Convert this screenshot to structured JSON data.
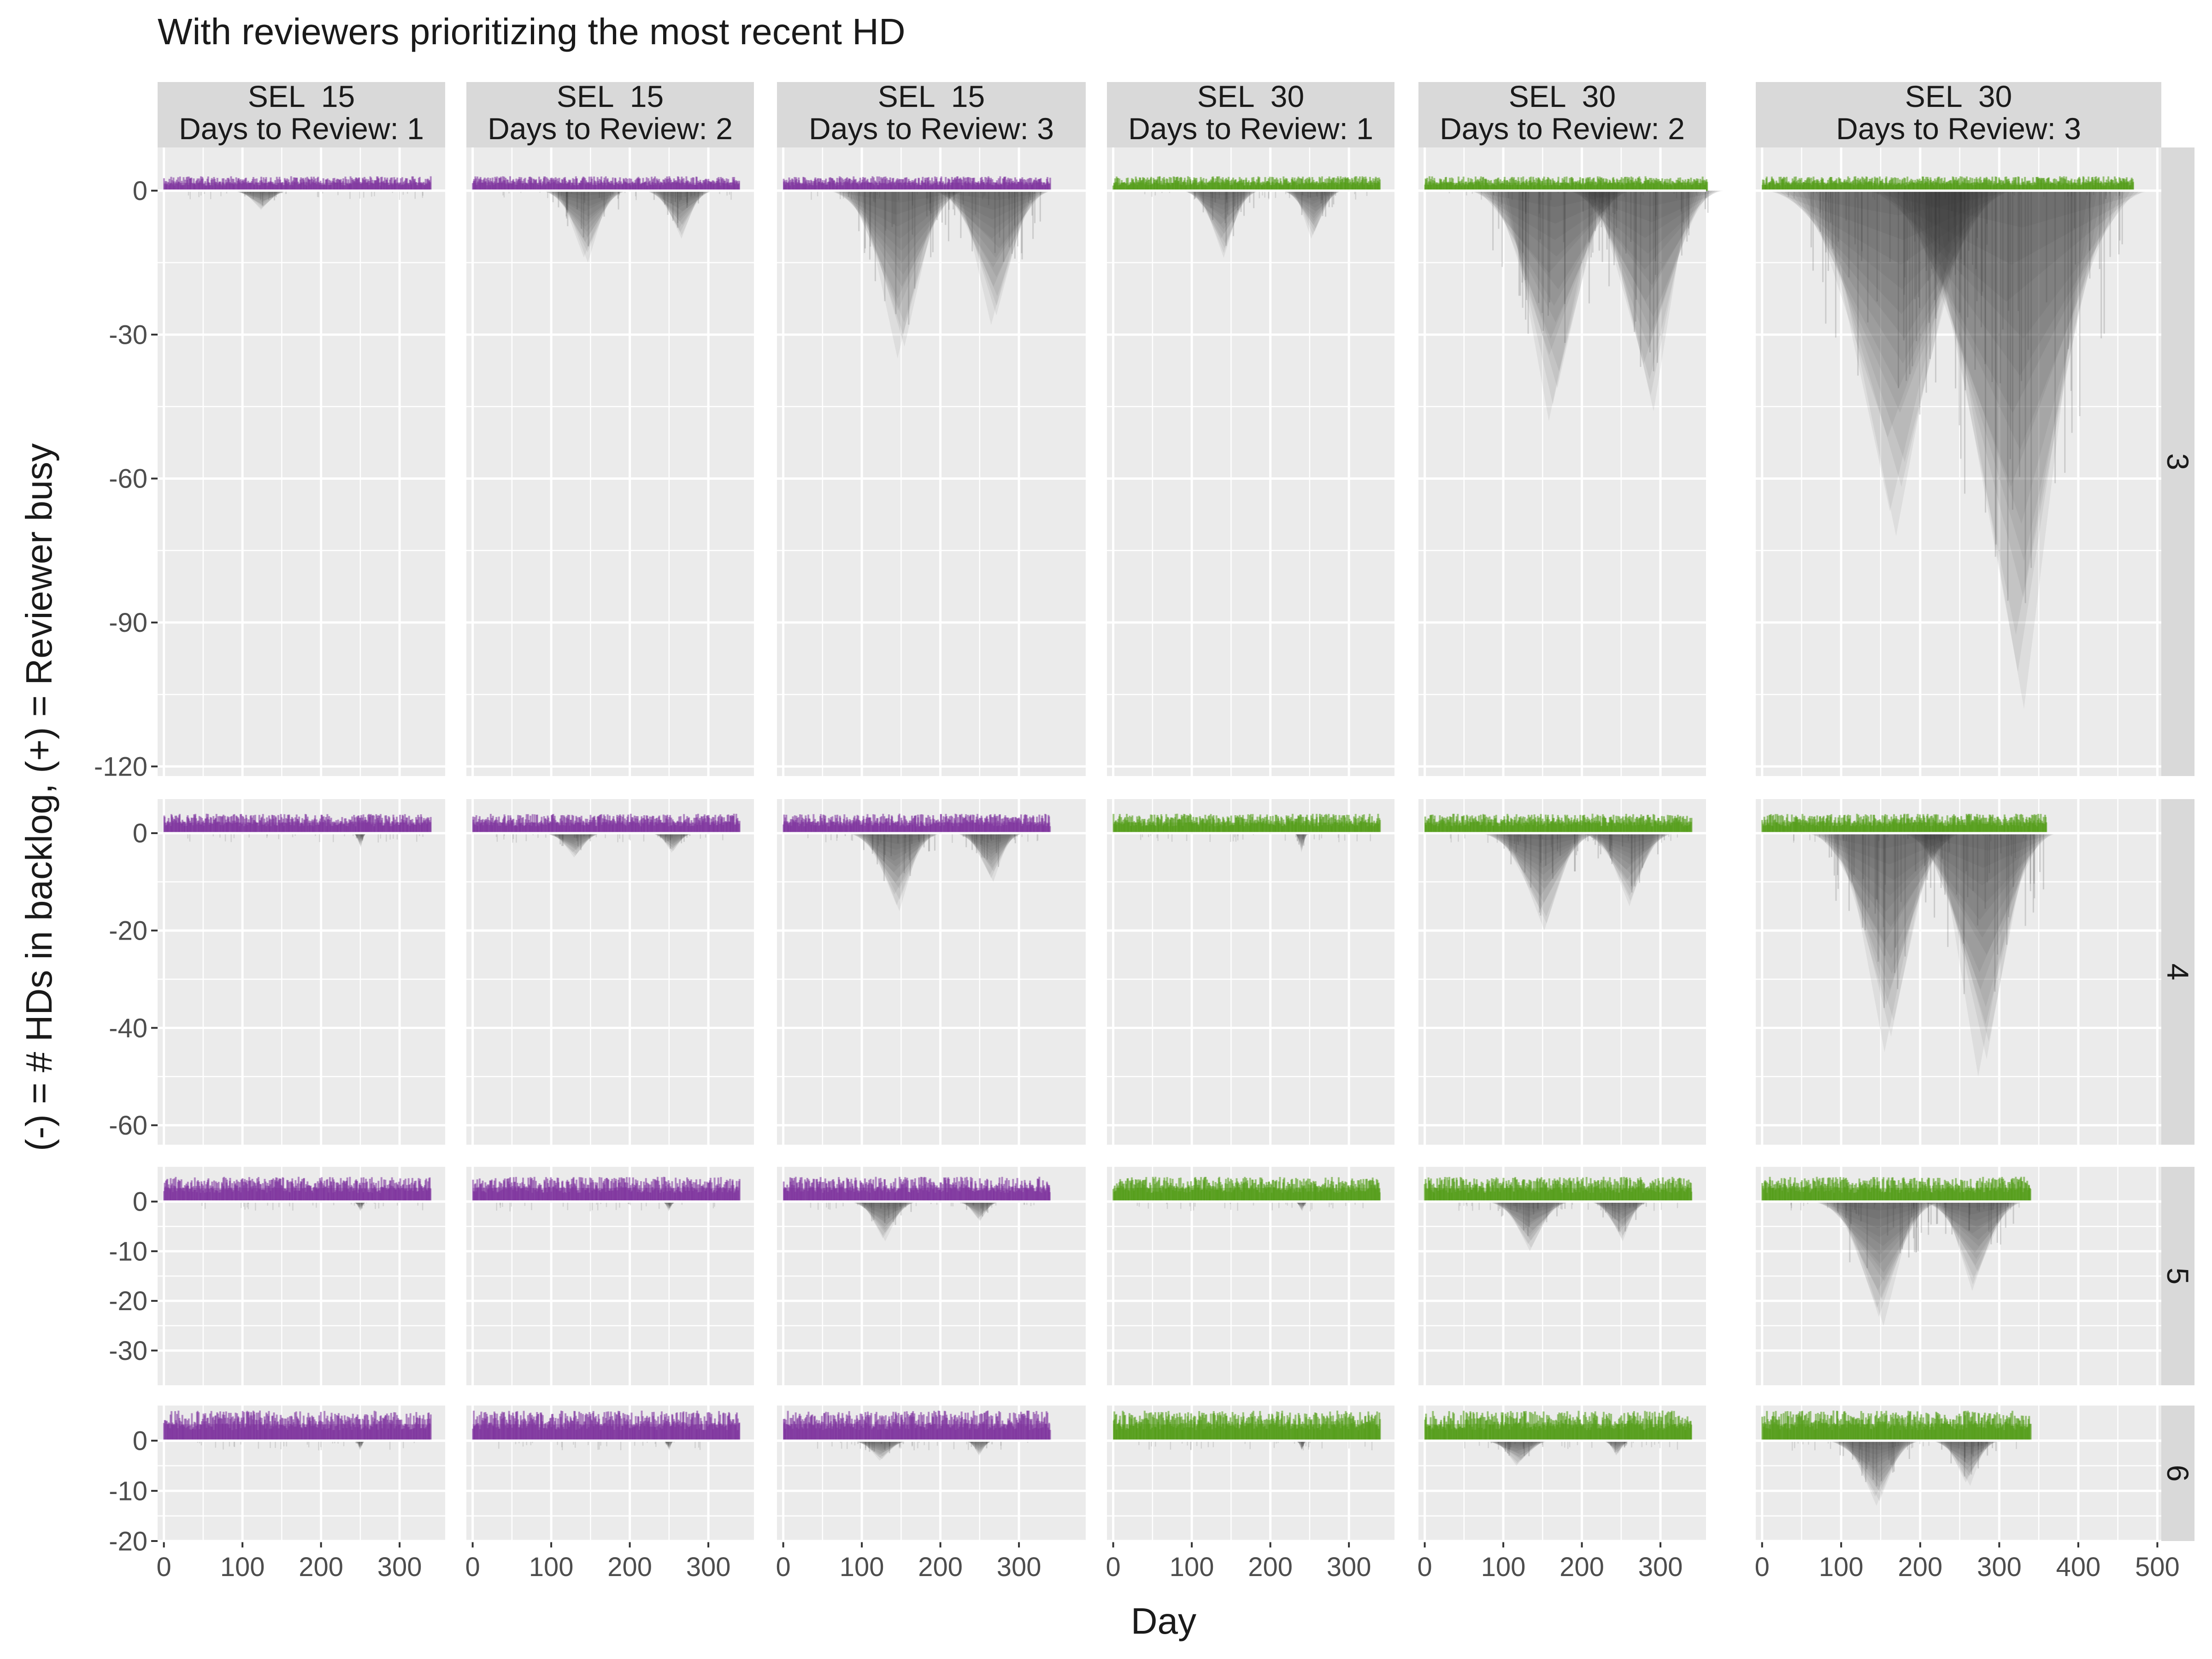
{
  "chart_data": {
    "type": "area",
    "title": "With reviewers prioritizing the most recent HD",
    "xlabel": "Day",
    "ylabel": "(-) = # HDs in backlog, (+) = Reviewer busy",
    "grid": true,
    "legend": "none",
    "colors": {
      "sel_15": "#7b2f9c",
      "sel_30": "#4f9a12",
      "backlog": "#3a3a3a",
      "panel_bg": "#ebebeb",
      "strip_bg": "#d9d9d9",
      "grid": "#ffffff",
      "text": "#1a1a1a",
      "tick_text": "#4d4d4d"
    },
    "columns": [
      {
        "sel": "15",
        "line1": "SEL  15",
        "line2": "Days to Review: 1"
      },
      {
        "sel": "15",
        "line1": "SEL  15",
        "line2": "Days to Review: 2"
      },
      {
        "sel": "15",
        "line1": "SEL  15",
        "line2": "Days to Review: 3"
      },
      {
        "sel": "30",
        "line1": "SEL  30",
        "line2": "Days to Review: 1"
      },
      {
        "sel": "30",
        "line1": "SEL  30",
        "line2": "Days to Review: 2"
      },
      {
        "sel": "30",
        "line1": "SEL  30",
        "line2": "Days to Review: 3"
      }
    ],
    "rows": [
      {
        "label": "3",
        "ylim": [
          -122,
          9
        ],
        "yticks": [
          0,
          -30,
          -60,
          -90,
          -120
        ]
      },
      {
        "label": "4",
        "ylim": [
          -64,
          7
        ],
        "yticks": [
          0,
          -20,
          -40,
          -60
        ]
      },
      {
        "label": "5",
        "ylim": [
          -37,
          7
        ],
        "yticks": [
          0,
          -10,
          -20,
          -30
        ]
      },
      {
        "label": "6",
        "ylim": [
          -20,
          7
        ],
        "yticks": [
          0,
          -10,
          -20
        ]
      }
    ],
    "x_axes": [
      {
        "xlim": [
          -8,
          358
        ],
        "xticks": [
          0,
          100,
          200,
          300
        ]
      },
      {
        "xlim": [
          -8,
          358
        ],
        "xticks": [
          0,
          100,
          200,
          300
        ]
      },
      {
        "xlim": [
          -8,
          385
        ],
        "xticks": [
          0,
          100,
          200,
          300
        ]
      },
      {
        "xlim": [
          -8,
          358
        ],
        "xticks": [
          0,
          100,
          200,
          300
        ]
      },
      {
        "xlim": [
          -8,
          358
        ],
        "xticks": [
          0,
          100,
          200,
          300
        ]
      },
      {
        "xlim": [
          -8,
          505
        ],
        "xticks": [
          0,
          100,
          200,
          300,
          400,
          500
        ]
      }
    ],
    "panels": [
      {
        "row": "3",
        "col": 0,
        "busy": {
          "day_range": [
            0,
            340
          ],
          "max": 3
        },
        "backlog_peaks": [
          {
            "day": 125,
            "depth": -4,
            "width": 40
          }
        ]
      },
      {
        "row": "3",
        "col": 1,
        "busy": {
          "day_range": [
            0,
            340
          ],
          "max": 3
        },
        "backlog_peaks": [
          {
            "day": 145,
            "depth": -15,
            "width": 55
          },
          {
            "day": 265,
            "depth": -10,
            "width": 45
          }
        ]
      },
      {
        "row": "3",
        "col": 2,
        "busy": {
          "day_range": [
            0,
            340
          ],
          "max": 3
        },
        "backlog_peaks": [
          {
            "day": 150,
            "depth": -35,
            "width": 85
          },
          {
            "day": 270,
            "depth": -28,
            "width": 75
          }
        ]
      },
      {
        "row": "3",
        "col": 3,
        "busy": {
          "day_range": [
            0,
            340
          ],
          "max": 3
        },
        "backlog_peaks": [
          {
            "day": 140,
            "depth": -14,
            "width": 50
          },
          {
            "day": 255,
            "depth": -10,
            "width": 40
          }
        ]
      },
      {
        "row": "3",
        "col": 4,
        "busy": {
          "day_range": [
            0,
            360
          ],
          "max": 3
        },
        "backlog_peaks": [
          {
            "day": 165,
            "depth": -48,
            "width": 100
          },
          {
            "day": 285,
            "depth": -46,
            "width": 95
          }
        ]
      },
      {
        "row": "3",
        "col": 5,
        "busy": {
          "day_range": [
            0,
            470
          ],
          "max": 3
        },
        "backlog_peaks": [
          {
            "day": 170,
            "depth": -72,
            "width": 150
          },
          {
            "day": 320,
            "depth": -108,
            "width": 170
          }
        ]
      },
      {
        "row": "4",
        "col": 0,
        "busy": {
          "day_range": [
            0,
            340
          ],
          "max": 4
        },
        "backlog_peaks": [
          {
            "day": 250,
            "depth": -3,
            "width": 10
          }
        ]
      },
      {
        "row": "4",
        "col": 1,
        "busy": {
          "day_range": [
            0,
            340
          ],
          "max": 4
        },
        "backlog_peaks": [
          {
            "day": 130,
            "depth": -5,
            "width": 40
          },
          {
            "day": 255,
            "depth": -4,
            "width": 30
          }
        ]
      },
      {
        "row": "4",
        "col": 2,
        "busy": {
          "day_range": [
            0,
            340
          ],
          "max": 4
        },
        "backlog_peaks": [
          {
            "day": 145,
            "depth": -16,
            "width": 60
          },
          {
            "day": 265,
            "depth": -10,
            "width": 45
          }
        ]
      },
      {
        "row": "4",
        "col": 3,
        "busy": {
          "day_range": [
            0,
            340
          ],
          "max": 4
        },
        "backlog_peaks": [
          {
            "day": 240,
            "depth": -4,
            "width": 10
          }
        ]
      },
      {
        "row": "4",
        "col": 4,
        "busy": {
          "day_range": [
            0,
            340
          ],
          "max": 4
        },
        "backlog_peaks": [
          {
            "day": 150,
            "depth": -20,
            "width": 75
          },
          {
            "day": 260,
            "depth": -15,
            "width": 60
          }
        ]
      },
      {
        "row": "4",
        "col": 5,
        "busy": {
          "day_range": [
            0,
            360
          ],
          "max": 4
        },
        "backlog_peaks": [
          {
            "day": 160,
            "depth": -45,
            "width": 95
          },
          {
            "day": 280,
            "depth": -50,
            "width": 95
          }
        ]
      },
      {
        "row": "5",
        "col": 0,
        "busy": {
          "day_range": [
            0,
            340
          ],
          "max": 5
        },
        "backlog_peaks": [
          {
            "day": 250,
            "depth": -2,
            "width": 10
          }
        ]
      },
      {
        "row": "5",
        "col": 1,
        "busy": {
          "day_range": [
            0,
            340
          ],
          "max": 5
        },
        "backlog_peaks": [
          {
            "day": 250,
            "depth": -2,
            "width": 10
          }
        ]
      },
      {
        "row": "5",
        "col": 2,
        "busy": {
          "day_range": [
            0,
            340
          ],
          "max": 5
        },
        "backlog_peaks": [
          {
            "day": 130,
            "depth": -8,
            "width": 45
          },
          {
            "day": 250,
            "depth": -4,
            "width": 30
          }
        ]
      },
      {
        "row": "5",
        "col": 3,
        "busy": {
          "day_range": [
            0,
            340
          ],
          "max": 5
        },
        "backlog_peaks": [
          {
            "day": 240,
            "depth": -2,
            "width": 10
          }
        ]
      },
      {
        "row": "5",
        "col": 4,
        "busy": {
          "day_range": [
            0,
            340
          ],
          "max": 5
        },
        "backlog_peaks": [
          {
            "day": 135,
            "depth": -10,
            "width": 55
          },
          {
            "day": 250,
            "depth": -8,
            "width": 40
          }
        ]
      },
      {
        "row": "5",
        "col": 5,
        "busy": {
          "day_range": [
            0,
            340
          ],
          "max": 5
        },
        "backlog_peaks": [
          {
            "day": 150,
            "depth": -25,
            "width": 80
          },
          {
            "day": 270,
            "depth": -18,
            "width": 65
          }
        ]
      },
      {
        "row": "6",
        "col": 0,
        "busy": {
          "day_range": [
            0,
            340
          ],
          "max": 6
        },
        "backlog_peaks": [
          {
            "day": 250,
            "depth": -2,
            "width": 8
          }
        ]
      },
      {
        "row": "6",
        "col": 1,
        "busy": {
          "day_range": [
            0,
            340
          ],
          "max": 6
        },
        "backlog_peaks": [
          {
            "day": 250,
            "depth": -2,
            "width": 8
          }
        ]
      },
      {
        "row": "6",
        "col": 2,
        "busy": {
          "day_range": [
            0,
            340
          ],
          "max": 6
        },
        "backlog_peaks": [
          {
            "day": 125,
            "depth": -4,
            "width": 40
          },
          {
            "day": 250,
            "depth": -3,
            "width": 20
          }
        ]
      },
      {
        "row": "6",
        "col": 3,
        "busy": {
          "day_range": [
            0,
            340
          ],
          "max": 6
        },
        "backlog_peaks": [
          {
            "day": 240,
            "depth": -2,
            "width": 8
          }
        ]
      },
      {
        "row": "6",
        "col": 4,
        "busy": {
          "day_range": [
            0,
            340
          ],
          "max": 6
        },
        "backlog_peaks": [
          {
            "day": 120,
            "depth": -5,
            "width": 45
          },
          {
            "day": 245,
            "depth": -3,
            "width": 20
          }
        ]
      },
      {
        "row": "6",
        "col": 5,
        "busy": {
          "day_range": [
            0,
            340
          ],
          "max": 6
        },
        "backlog_peaks": [
          {
            "day": 145,
            "depth": -13,
            "width": 60
          },
          {
            "day": 260,
            "depth": -9,
            "width": 45
          }
        ]
      }
    ]
  }
}
